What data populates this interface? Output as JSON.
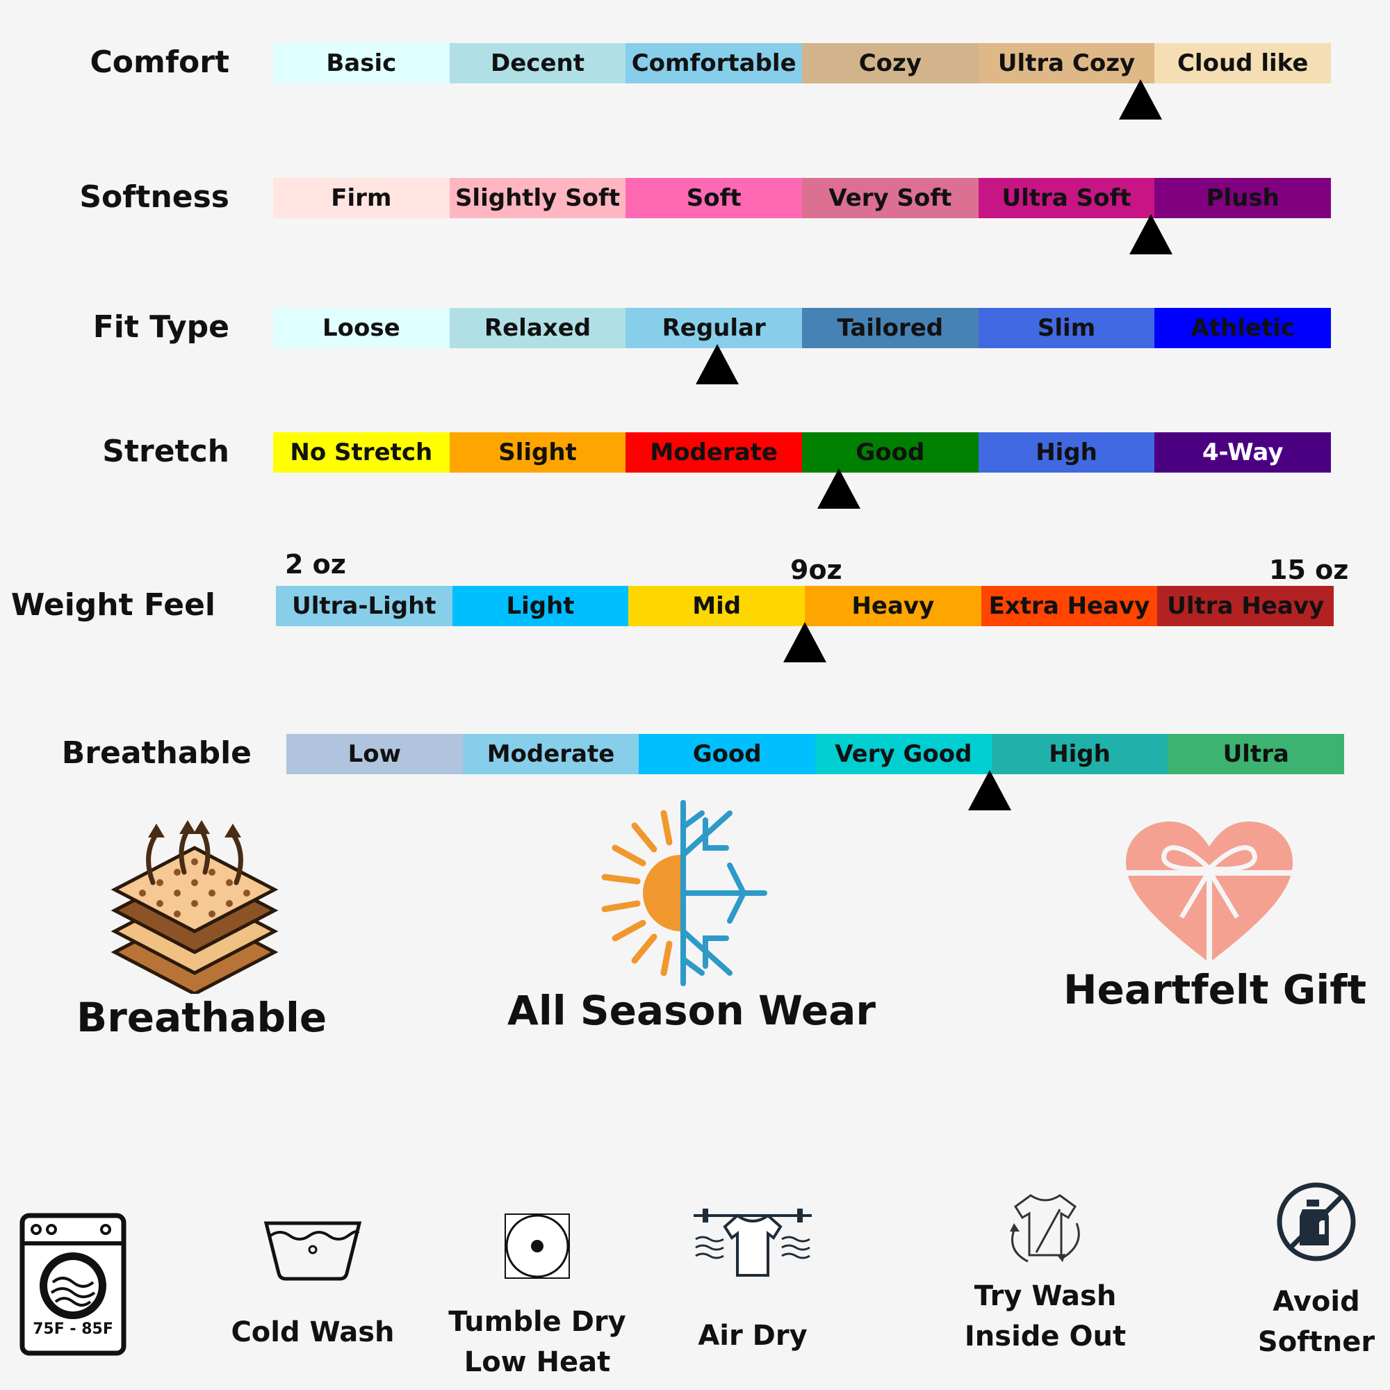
{
  "scales": [
    {
      "label": "Comfort",
      "segments": [
        "Basic",
        "Decent",
        "Comfortable",
        "Cozy",
        "Ultra Cozy",
        "Cloud like"
      ],
      "colors": [
        "#e0ffff",
        "#b0e0e6",
        "#87ceeb",
        "#d2b48c",
        "#deb887",
        "#f5deb3"
      ],
      "text_colors": [
        "#111",
        "#111",
        "#111",
        "#111",
        "#111",
        "#111"
      ],
      "pointer_position": 0.82
    },
    {
      "label": "Softness",
      "segments": [
        "Firm",
        "Slightly Soft",
        "Soft",
        "Very Soft",
        "Ultra Soft",
        "Plush"
      ],
      "colors": [
        "#ffe4e1",
        "#ffb6c1",
        "#ff69b4",
        "#db7093",
        "#c71585",
        "#800080"
      ],
      "text_colors": [
        "#111",
        "#111",
        "#111",
        "#111",
        "#111",
        "#111"
      ],
      "pointer_position": 0.83
    },
    {
      "label": "Fit Type",
      "segments": [
        "Loose",
        "Relaxed",
        "Regular",
        "Tailored",
        "Slim",
        "Athletic"
      ],
      "colors": [
        "#e0ffff",
        "#b0e0e6",
        "#87ceeb",
        "#4682b4",
        "#4169e1",
        "#0000ff"
      ],
      "text_colors": [
        "#111",
        "#111",
        "#111",
        "#111",
        "#111",
        "#111"
      ],
      "pointer_position": 0.42
    },
    {
      "label": "Stretch",
      "segments": [
        "No Stretch",
        "Slight",
        "Moderate",
        "Good",
        "High",
        "4-Way"
      ],
      "colors": [
        "#ffff00",
        "#ffa500",
        "#ff0000",
        "#008000",
        "#4169e1",
        "#4b0082"
      ],
      "text_colors": [
        "#111",
        "#111",
        "#111",
        "#111",
        "#111",
        "#ffffff"
      ],
      "pointer_position": 0.535
    },
    {
      "label": "Weight Feel",
      "segments": [
        "Ultra-Light",
        "Light",
        "Mid",
        "Heavy",
        "Extra Heavy",
        "Ultra Heavy"
      ],
      "colors": [
        "#87ceeb",
        "#00bfff",
        "#ffd700",
        "#ffa500",
        "#ff4500",
        "#b22222"
      ],
      "text_colors": [
        "#111",
        "#111",
        "#111",
        "#111",
        "#111",
        "#111"
      ],
      "pointer_position": 0.5,
      "weight_marks": [
        "2 oz",
        "9oz",
        "15 oz"
      ]
    },
    {
      "label": "Breathable",
      "segments": [
        "Low",
        "Moderate",
        "Good",
        "Very Good",
        "High",
        "Ultra"
      ],
      "colors": [
        "#b0c4de",
        "#87ceeb",
        "#00bfff",
        "#00ced1",
        "#20b2aa",
        "#3cb371"
      ],
      "text_colors": [
        "#111",
        "#111",
        "#111",
        "#111",
        "#111",
        "#111"
      ],
      "pointer_position": 0.665
    }
  ],
  "features": [
    {
      "title": "Breathable",
      "icon": "breathable-fabric-icon"
    },
    {
      "title": "All Season Wear",
      "icon": "sun-snowflake-icon"
    },
    {
      "title": "Heartfelt Gift",
      "icon": "gift-heart-icon"
    }
  ],
  "care": {
    "washer_temp": "75F - 85F",
    "items": [
      {
        "lines": [
          "Cold Wash"
        ],
        "icon": "washbasin-icon"
      },
      {
        "lines": [
          "Tumble Dry",
          "Low Heat"
        ],
        "icon": "tumble-dry-icon"
      },
      {
        "lines": [
          "Air Dry"
        ],
        "icon": "clothesline-icon"
      },
      {
        "lines": [
          "Try Wash",
          "Inside Out"
        ],
        "icon": "tshirt-inside-out-icon"
      },
      {
        "lines": [
          "Avoid",
          "Softner"
        ],
        "icon": "no-softener-icon"
      }
    ]
  }
}
